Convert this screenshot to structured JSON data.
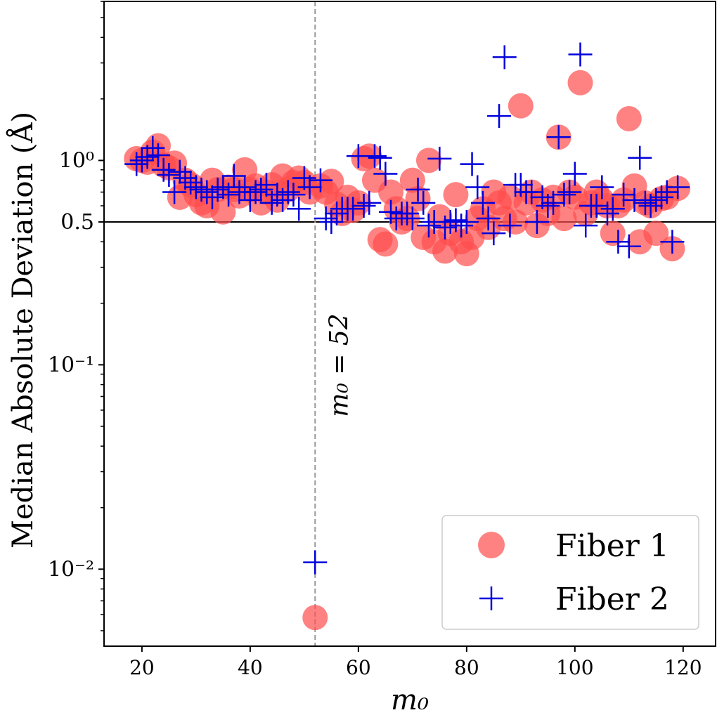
{
  "chart_data": {
    "type": "scatter",
    "title": "",
    "xlabel": "m₀",
    "ylabel": "Median Absolute Deviation (Å)",
    "xlim": [
      13,
      126
    ],
    "ylim": [
      0.0042,
      6.0
    ],
    "yscale": "log",
    "x_ticks": [
      20,
      40,
      60,
      80,
      100,
      120
    ],
    "x_tick_labels": [
      "20",
      "40",
      "60",
      "80",
      "100",
      "120"
    ],
    "y_ticks": [
      0.01,
      0.1,
      0.5,
      1.0
    ],
    "y_tick_labels": [
      "10⁻²",
      "10⁻¹",
      "0.5",
      "10⁰"
    ],
    "reference_lines": {
      "horizontal": {
        "y": 0.5,
        "style": "solid",
        "color": "#000000"
      },
      "vertical": {
        "x": 52,
        "style": "dashed",
        "color": "#999999",
        "label": "m₀ = 52"
      }
    },
    "legend": {
      "position": "bottom-right",
      "entries": [
        "Fiber 1",
        "Fiber 2"
      ]
    },
    "series": [
      {
        "name": "Fiber 1",
        "marker": "circle",
        "color": "#ff4d4d",
        "points": [
          [
            19,
            1.02
          ],
          [
            20,
            1.0
          ],
          [
            21,
            0.98
          ],
          [
            22,
            1.1
          ],
          [
            23,
            1.18
          ],
          [
            24,
            0.95
          ],
          [
            25,
            0.92
          ],
          [
            26,
            0.97
          ],
          [
            27,
            0.66
          ],
          [
            28,
            0.8
          ],
          [
            29,
            0.76
          ],
          [
            30,
            0.68
          ],
          [
            31,
            0.62
          ],
          [
            32,
            0.6
          ],
          [
            33,
            0.8
          ],
          [
            34,
            0.72
          ],
          [
            35,
            0.56
          ],
          [
            36,
            0.74
          ],
          [
            37,
            0.72
          ],
          [
            38,
            0.67
          ],
          [
            39,
            0.9
          ],
          [
            40,
            0.72
          ],
          [
            41,
            0.75
          ],
          [
            42,
            0.62
          ],
          [
            43,
            0.7
          ],
          [
            44,
            0.76
          ],
          [
            45,
            0.64
          ],
          [
            46,
            0.84
          ],
          [
            47,
            0.72
          ],
          [
            48,
            0.78
          ],
          [
            49,
            0.82
          ],
          [
            50,
            0.78
          ],
          [
            51,
            0.7
          ],
          [
            52,
            0.0058
          ],
          [
            53,
            0.75
          ],
          [
            54,
            0.7
          ],
          [
            55,
            0.79
          ],
          [
            56,
            0.61
          ],
          [
            57,
            0.55
          ],
          [
            58,
            0.66
          ],
          [
            59,
            0.57
          ],
          [
            60,
            0.62
          ],
          [
            61,
            1.02
          ],
          [
            62,
            1.05
          ],
          [
            63,
            0.8
          ],
          [
            64,
            0.41
          ],
          [
            65,
            0.39
          ],
          [
            66,
            0.7
          ],
          [
            67,
            0.58
          ],
          [
            68,
            0.5
          ],
          [
            69,
            0.52
          ],
          [
            70,
            0.8
          ],
          [
            71,
            0.65
          ],
          [
            72,
            0.42
          ],
          [
            73,
            1.0
          ],
          [
            74,
            0.4
          ],
          [
            75,
            0.53
          ],
          [
            76,
            0.36
          ],
          [
            77,
            0.44
          ],
          [
            78,
            0.68
          ],
          [
            79,
            0.4
          ],
          [
            80,
            0.35
          ],
          [
            81,
            0.42
          ],
          [
            82,
            0.52
          ],
          [
            83,
            0.58
          ],
          [
            84,
            0.47
          ],
          [
            85,
            0.7
          ],
          [
            86,
            0.62
          ],
          [
            87,
            0.52
          ],
          [
            88,
            0.66
          ],
          [
            89,
            0.5
          ],
          [
            90,
            1.85
          ],
          [
            91,
            0.62
          ],
          [
            92,
            0.7
          ],
          [
            93,
            0.48
          ],
          [
            94,
            0.64
          ],
          [
            95,
            0.55
          ],
          [
            96,
            0.66
          ],
          [
            97,
            1.3
          ],
          [
            98,
            0.52
          ],
          [
            99,
            0.7
          ],
          [
            100,
            0.66
          ],
          [
            101,
            2.4
          ],
          [
            102,
            0.55
          ],
          [
            103,
            0.62
          ],
          [
            104,
            0.7
          ],
          [
            105,
            0.64
          ],
          [
            106,
            0.6
          ],
          [
            107,
            0.44
          ],
          [
            108,
            0.6
          ],
          [
            109,
            0.64
          ],
          [
            110,
            1.6
          ],
          [
            111,
            0.75
          ],
          [
            112,
            0.4
          ],
          [
            113,
            0.62
          ],
          [
            114,
            0.6
          ],
          [
            115,
            0.44
          ],
          [
            116,
            0.65
          ],
          [
            117,
            0.66
          ],
          [
            118,
            0.37
          ],
          [
            119,
            0.73
          ]
        ]
      },
      {
        "name": "Fiber 2",
        "marker": "plus",
        "color": "#0000dd",
        "points": [
          [
            19,
            0.96
          ],
          [
            20,
            1.0
          ],
          [
            21,
            1.04
          ],
          [
            22,
            1.15
          ],
          [
            23,
            1.06
          ],
          [
            24,
            0.9
          ],
          [
            25,
            0.85
          ],
          [
            26,
            0.7
          ],
          [
            27,
            0.88
          ],
          [
            28,
            0.82
          ],
          [
            29,
            0.78
          ],
          [
            30,
            0.74
          ],
          [
            31,
            0.72
          ],
          [
            32,
            0.7
          ],
          [
            33,
            0.66
          ],
          [
            34,
            0.72
          ],
          [
            35,
            0.74
          ],
          [
            36,
            0.68
          ],
          [
            37,
            0.84
          ],
          [
            38,
            0.7
          ],
          [
            39,
            0.74
          ],
          [
            40,
            0.64
          ],
          [
            41,
            0.7
          ],
          [
            42,
            0.72
          ],
          [
            43,
            0.76
          ],
          [
            44,
            0.62
          ],
          [
            45,
            0.68
          ],
          [
            46,
            0.64
          ],
          [
            47,
            0.7
          ],
          [
            48,
            0.68
          ],
          [
            49,
            0.58
          ],
          [
            50,
            0.82
          ],
          [
            51,
            0.74
          ],
          [
            52,
            0.0108
          ],
          [
            53,
            0.8
          ],
          [
            54,
            0.52
          ],
          [
            55,
            0.5
          ],
          [
            56,
            0.55
          ],
          [
            57,
            0.58
          ],
          [
            58,
            0.58
          ],
          [
            59,
            0.58
          ],
          [
            60,
            1.05
          ],
          [
            61,
            0.6
          ],
          [
            62,
            0.62
          ],
          [
            63,
            1.05
          ],
          [
            64,
            1.03
          ],
          [
            65,
            0.86
          ],
          [
            66,
            0.56
          ],
          [
            67,
            0.52
          ],
          [
            68,
            0.55
          ],
          [
            69,
            0.55
          ],
          [
            70,
            0.52
          ],
          [
            71,
            0.72
          ],
          [
            72,
            0.62
          ],
          [
            73,
            0.48
          ],
          [
            74,
            0.5
          ],
          [
            75,
            1.02
          ],
          [
            76,
            0.47
          ],
          [
            77,
            0.5
          ],
          [
            78,
            0.51
          ],
          [
            79,
            0.48
          ],
          [
            80,
            0.5
          ],
          [
            81,
            0.96
          ],
          [
            82,
            0.74
          ],
          [
            83,
            0.62
          ],
          [
            84,
            0.52
          ],
          [
            85,
            0.44
          ],
          [
            86,
            1.65
          ],
          [
            87,
            3.2
          ],
          [
            88,
            0.48
          ],
          [
            89,
            0.76
          ],
          [
            90,
            0.76
          ],
          [
            91,
            0.7
          ],
          [
            92,
            0.7
          ],
          [
            93,
            0.5
          ],
          [
            94,
            0.66
          ],
          [
            95,
            0.6
          ],
          [
            96,
            0.62
          ],
          [
            97,
            1.3
          ],
          [
            98,
            0.68
          ],
          [
            99,
            0.7
          ],
          [
            100,
            0.86
          ],
          [
            101,
            3.3
          ],
          [
            102,
            0.48
          ],
          [
            103,
            0.6
          ],
          [
            104,
            0.6
          ],
          [
            105,
            0.74
          ],
          [
            106,
            0.55
          ],
          [
            107,
            0.58
          ],
          [
            108,
            0.4
          ],
          [
            109,
            0.68
          ],
          [
            110,
            0.38
          ],
          [
            111,
            0.64
          ],
          [
            112,
            1.03
          ],
          [
            113,
            0.62
          ],
          [
            114,
            0.6
          ],
          [
            115,
            0.64
          ],
          [
            116,
            0.66
          ],
          [
            117,
            0.7
          ],
          [
            118,
            0.4
          ],
          [
            119,
            0.74
          ]
        ]
      }
    ]
  }
}
